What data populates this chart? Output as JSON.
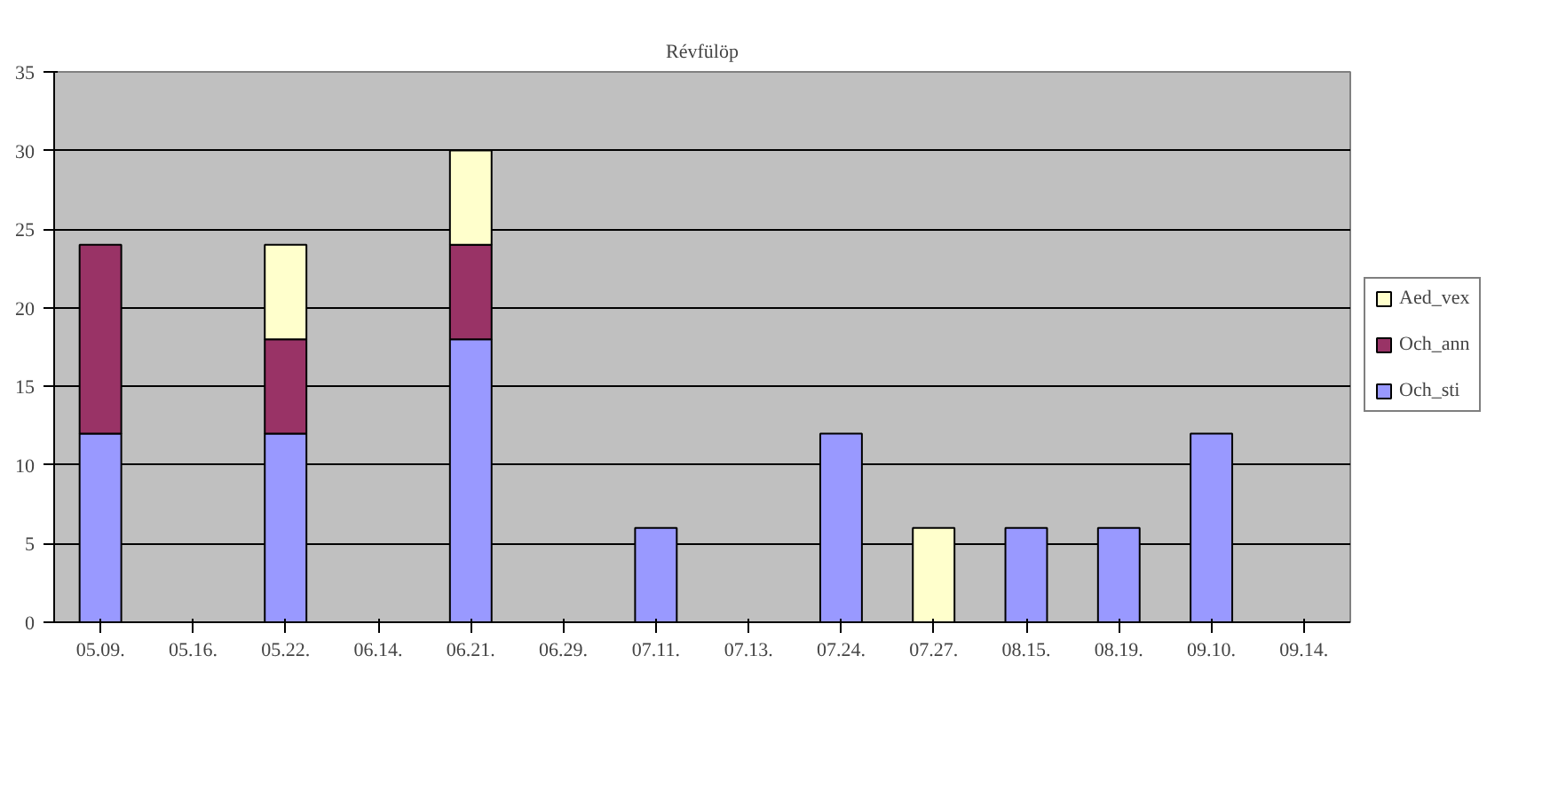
{
  "chart_data": {
    "type": "bar",
    "title": "Révfülöp",
    "stacked": true,
    "categories": [
      "05.09.",
      "05.16.",
      "05.22.",
      "06.14.",
      "06.21.",
      "06.29.",
      "07.11.",
      "07.13.",
      "07.24.",
      "07.27.",
      "08.15.",
      "08.19.",
      "09.10.",
      "09.14."
    ],
    "series": [
      {
        "name": "Och_sti",
        "color": "#9999ff",
        "values": [
          12,
          null,
          12,
          null,
          18,
          null,
          6,
          null,
          12,
          null,
          6,
          6,
          12,
          null
        ]
      },
      {
        "name": "Och_ann",
        "color": "#993366",
        "values": [
          12,
          null,
          6,
          null,
          6,
          null,
          null,
          null,
          null,
          null,
          null,
          null,
          null,
          null
        ]
      },
      {
        "name": "Aed_vex",
        "color": "#ffffcc",
        "values": [
          null,
          null,
          6,
          null,
          6,
          null,
          null,
          null,
          null,
          6,
          null,
          null,
          null,
          null
        ]
      }
    ],
    "ylim": [
      0,
      35
    ],
    "yticks": [
      0,
      5,
      10,
      15,
      20,
      25,
      30,
      35
    ],
    "grid": "y",
    "legend": "right"
  }
}
